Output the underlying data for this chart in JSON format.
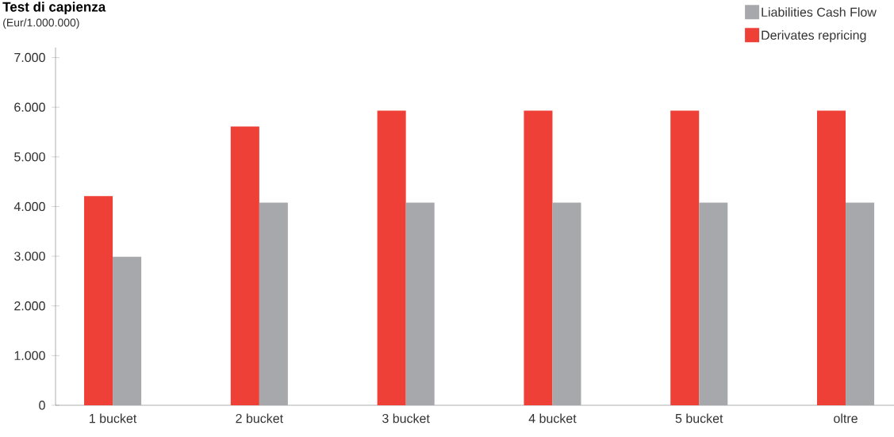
{
  "chart_data": {
    "type": "bar",
    "title": "Test di capienza",
    "subtitle": "(Eur/1.000.000)",
    "categories": [
      "1 bucket",
      "2 bucket",
      "3 bucket",
      "4 bucket",
      "5 bucket",
      "oltre"
    ],
    "series": [
      {
        "name": "Derivates repricing",
        "color": "#ee4036",
        "values": [
          4210,
          5610,
          5930,
          5930,
          5930,
          5930
        ]
      },
      {
        "name": "Liabilities Cash Flow",
        "color": "#a7a8ab",
        "values": [
          2990,
          4080,
          4080,
          4080,
          4080,
          4080
        ]
      }
    ],
    "ylim": [
      0,
      7200
    ],
    "yticks": [
      0,
      {
        "value": 1000,
        "label": "1.000"
      },
      {
        "value": 2000,
        "label": "2.000"
      },
      {
        "value": 3000,
        "label": "3.000"
      },
      {
        "value": 4000,
        "label": "4.000"
      },
      {
        "value": 5000,
        "label": "5.000"
      },
      {
        "value": 6000,
        "label": "6.000"
      },
      {
        "value": 7000,
        "label": "7.000"
      }
    ],
    "grid": false,
    "legend": "top right"
  }
}
